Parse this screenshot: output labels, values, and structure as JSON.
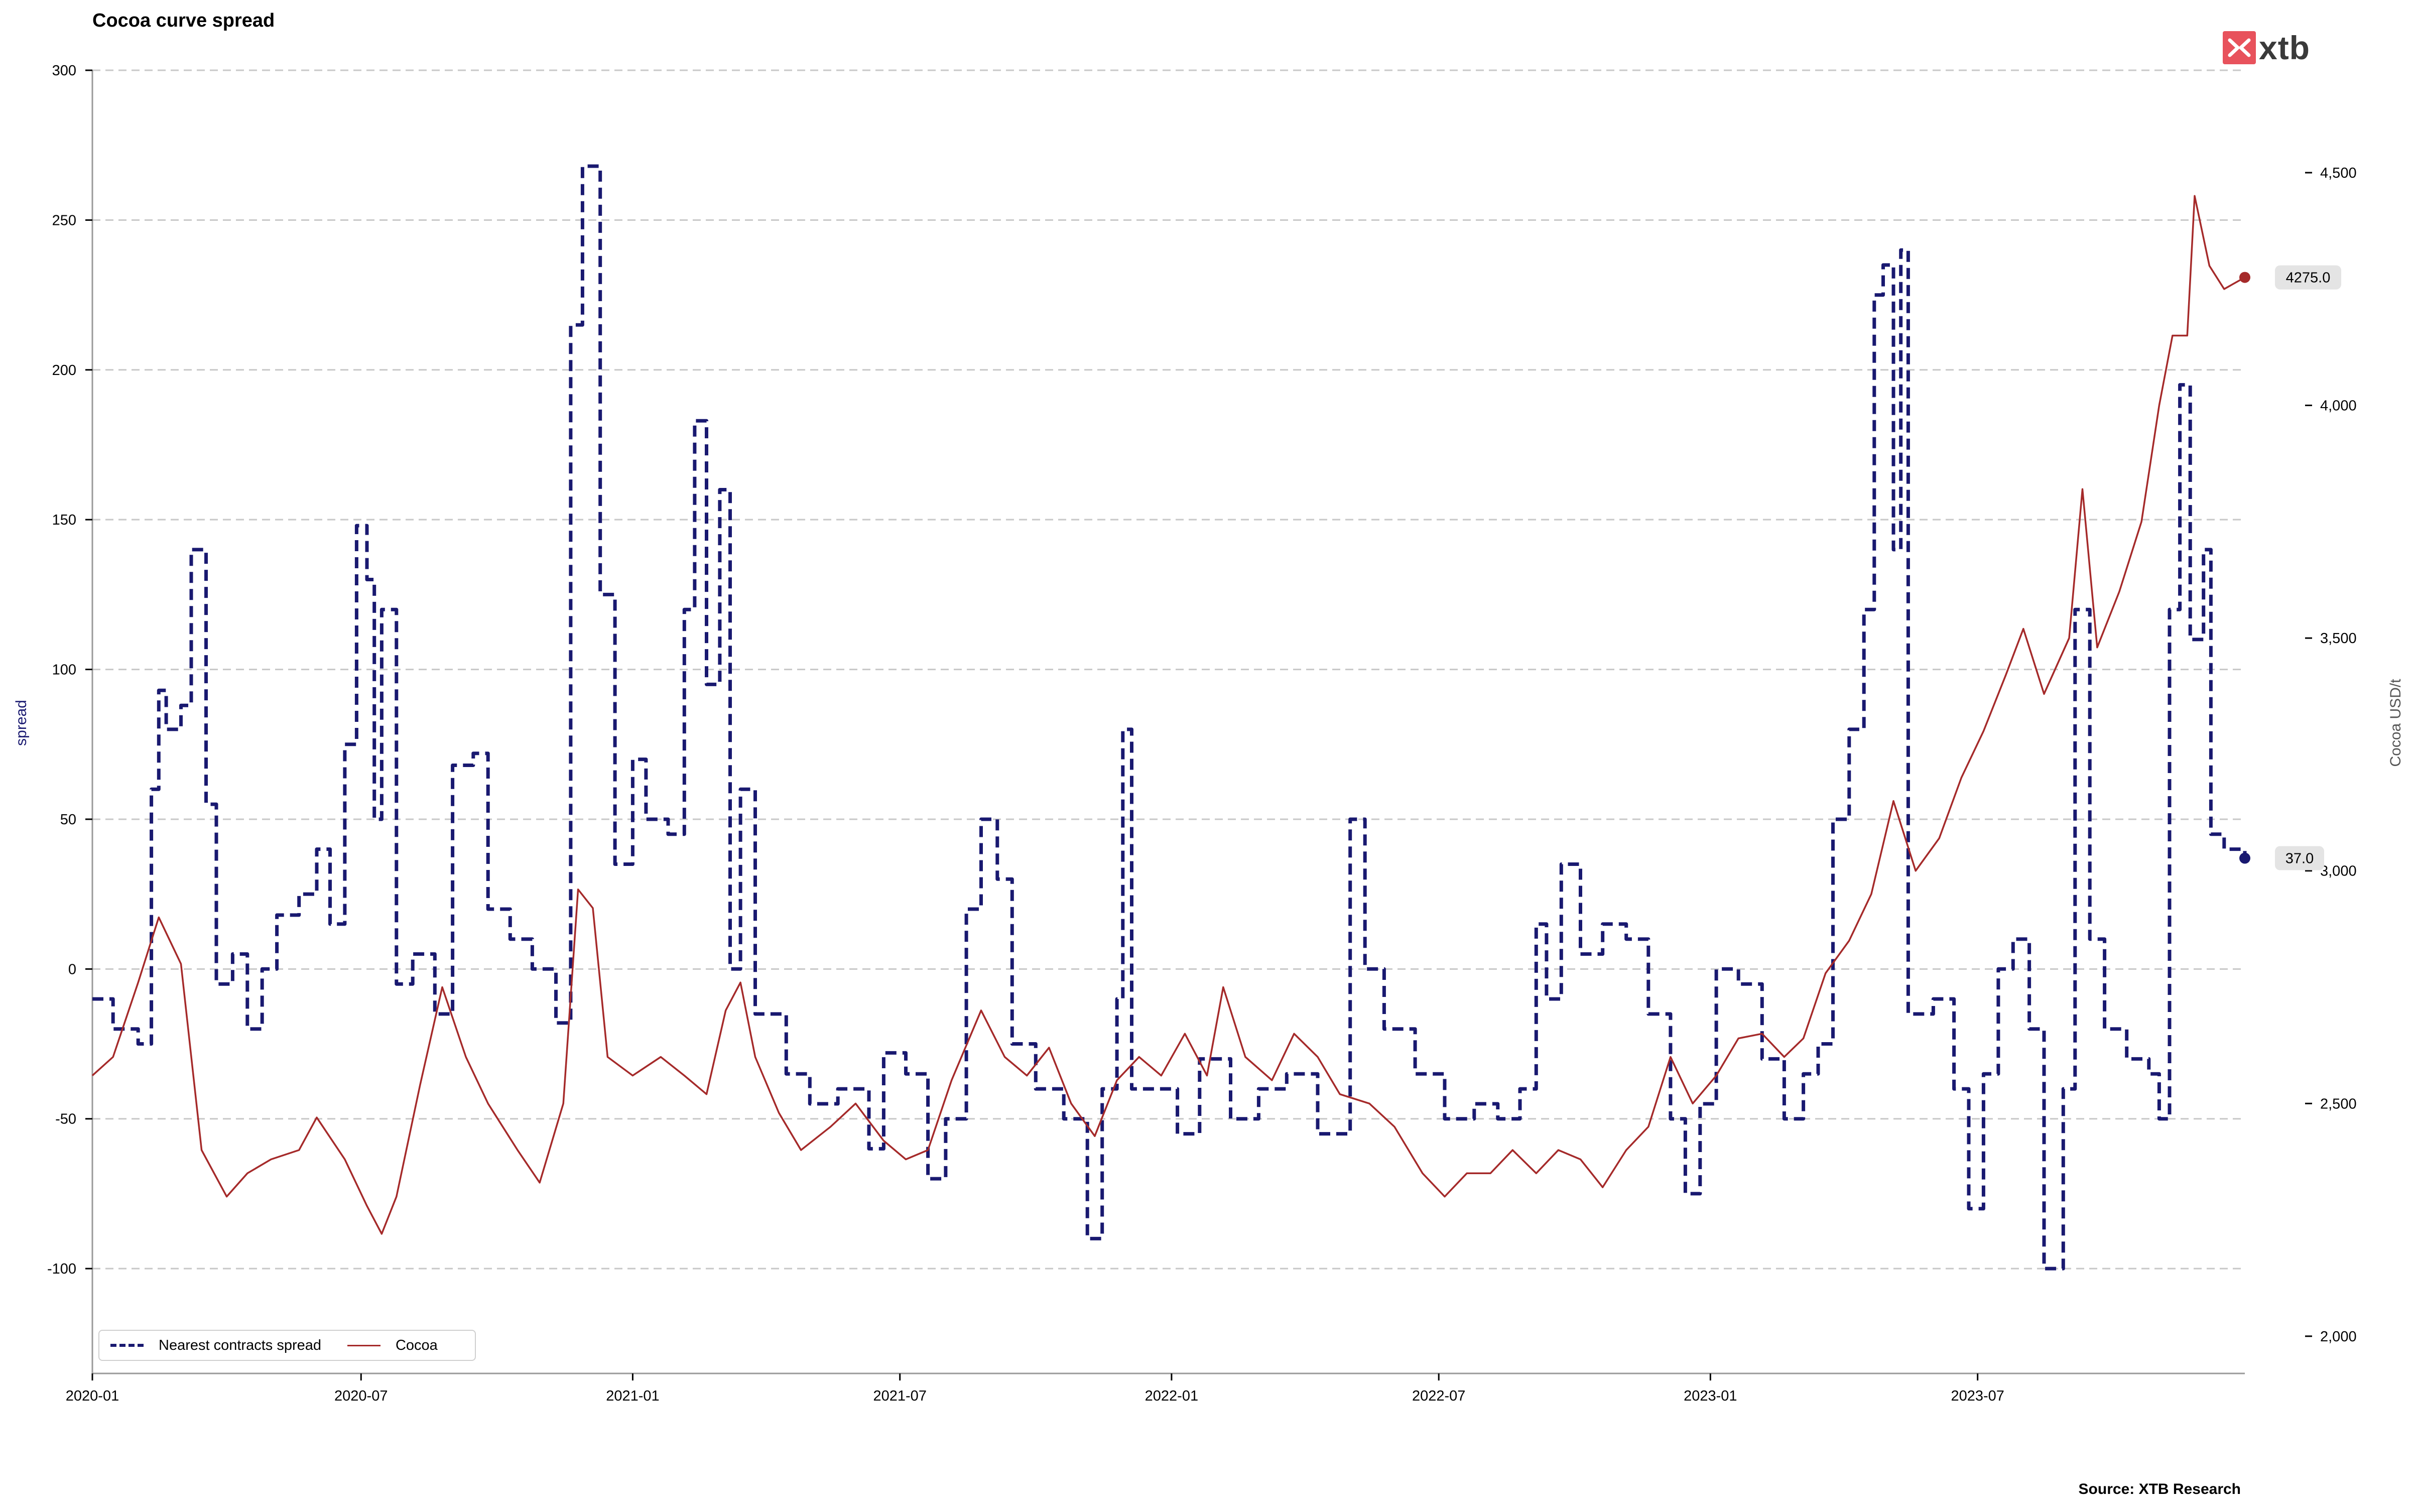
{
  "header": {
    "title": "Cocoa curve spread"
  },
  "footer": {
    "source": "Source: XTB Research"
  },
  "logo": {
    "text": "xtb",
    "color": "#e8525c"
  },
  "legend": {
    "spread_label": "Nearest contracts spread",
    "cocoa_label": "Cocoa"
  },
  "colors": {
    "spread": "#191970",
    "cocoa": "#a52a2a",
    "grid": "#c8c8c8"
  },
  "chart_data": {
    "type": "line",
    "x_start": "2020-01",
    "x_end": "2023-12",
    "xlim": [
      "2020-01-01",
      "2023-12-29"
    ],
    "x_ticks": [
      "2020-01",
      "2020-07",
      "2021-01",
      "2021-07",
      "2022-01",
      "2022-07",
      "2023-01",
      "2023-07"
    ],
    "ylabel_left": "spread",
    "ylabel_right": "Cocoa USD/t",
    "ylim_left": [
      -135,
      300
    ],
    "yticks_left": [
      "300",
      "250",
      "200",
      "150",
      "100",
      "50",
      "0",
      "-50",
      "-100"
    ],
    "ylim_right": [
      1920,
      4720
    ],
    "yticks_right": [
      "4,500",
      "4,000",
      "3,500",
      "3,000",
      "2,500",
      "2,000"
    ],
    "grid": "horizontal dashed",
    "legend_position": "lower-left",
    "series": [
      {
        "name": "Nearest contracts spread",
        "axis": "left",
        "style": "dashed",
        "end_label": "37.0",
        "points": [
          [
            "2020-01-01",
            -10
          ],
          [
            "2020-01-15",
            -20
          ],
          [
            "2020-02-01",
            -25
          ],
          [
            "2020-02-10",
            60
          ],
          [
            "2020-02-15",
            93
          ],
          [
            "2020-02-20",
            80
          ],
          [
            "2020-03-01",
            88
          ],
          [
            "2020-03-08",
            140
          ],
          [
            "2020-03-18",
            55
          ],
          [
            "2020-03-25",
            -5
          ],
          [
            "2020-04-05",
            5
          ],
          [
            "2020-04-15",
            -20
          ],
          [
            "2020-04-25",
            0
          ],
          [
            "2020-05-05",
            18
          ],
          [
            "2020-05-20",
            25
          ],
          [
            "2020-06-01",
            40
          ],
          [
            "2020-06-10",
            15
          ],
          [
            "2020-06-20",
            75
          ],
          [
            "2020-06-28",
            148
          ],
          [
            "2020-07-05",
            130
          ],
          [
            "2020-07-10",
            50
          ],
          [
            "2020-07-15",
            120
          ],
          [
            "2020-07-25",
            -5
          ],
          [
            "2020-08-05",
            5
          ],
          [
            "2020-08-20",
            -15
          ],
          [
            "2020-09-01",
            68
          ],
          [
            "2020-09-15",
            72
          ],
          [
            "2020-09-25",
            20
          ],
          [
            "2020-10-10",
            10
          ],
          [
            "2020-10-25",
            0
          ],
          [
            "2020-11-10",
            -18
          ],
          [
            "2020-11-20",
            215
          ],
          [
            "2020-11-28",
            268
          ],
          [
            "2020-12-10",
            125
          ],
          [
            "2020-12-20",
            35
          ],
          [
            "2021-01-01",
            70
          ],
          [
            "2021-01-10",
            50
          ],
          [
            "2021-01-25",
            45
          ],
          [
            "2021-02-05",
            120
          ],
          [
            "2021-02-12",
            183
          ],
          [
            "2021-02-20",
            95
          ],
          [
            "2021-03-01",
            160
          ],
          [
            "2021-03-08",
            0
          ],
          [
            "2021-03-15",
            60
          ],
          [
            "2021-03-25",
            -15
          ],
          [
            "2021-04-15",
            -35
          ],
          [
            "2021-05-01",
            -45
          ],
          [
            "2021-05-20",
            -40
          ],
          [
            "2021-06-10",
            -60
          ],
          [
            "2021-06-20",
            -28
          ],
          [
            "2021-07-05",
            -35
          ],
          [
            "2021-07-20",
            -70
          ],
          [
            "2021-08-01",
            -50
          ],
          [
            "2021-08-15",
            20
          ],
          [
            "2021-08-25",
            50
          ],
          [
            "2021-09-05",
            30
          ],
          [
            "2021-09-15",
            -25
          ],
          [
            "2021-10-01",
            -40
          ],
          [
            "2021-10-20",
            -50
          ],
          [
            "2021-11-05",
            -90
          ],
          [
            "2021-11-15",
            -40
          ],
          [
            "2021-11-25",
            -10
          ],
          [
            "2021-11-29",
            80
          ],
          [
            "2021-12-05",
            -40
          ],
          [
            "2022-01-05",
            -55
          ],
          [
            "2022-01-20",
            -30
          ],
          [
            "2022-02-10",
            -50
          ],
          [
            "2022-03-01",
            -40
          ],
          [
            "2022-03-20",
            -35
          ],
          [
            "2022-04-10",
            -55
          ],
          [
            "2022-04-25",
            -55
          ],
          [
            "2022-05-02",
            50
          ],
          [
            "2022-05-12",
            0
          ],
          [
            "2022-05-25",
            -20
          ],
          [
            "2022-06-15",
            -35
          ],
          [
            "2022-07-05",
            -50
          ],
          [
            "2022-07-25",
            -45
          ],
          [
            "2022-08-10",
            -50
          ],
          [
            "2022-08-25",
            -40
          ],
          [
            "2022-09-05",
            15
          ],
          [
            "2022-09-12",
            -10
          ],
          [
            "2022-09-22",
            35
          ],
          [
            "2022-10-05",
            5
          ],
          [
            "2022-10-20",
            15
          ],
          [
            "2022-11-05",
            10
          ],
          [
            "2022-11-20",
            -15
          ],
          [
            "2022-12-05",
            -50
          ],
          [
            "2022-12-15",
            -75
          ],
          [
            "2022-12-25",
            -45
          ],
          [
            "2023-01-05",
            0
          ],
          [
            "2023-01-20",
            -5
          ],
          [
            "2023-02-05",
            -30
          ],
          [
            "2023-02-20",
            -50
          ],
          [
            "2023-03-05",
            -35
          ],
          [
            "2023-03-15",
            -25
          ],
          [
            "2023-03-25",
            50
          ],
          [
            "2023-04-05",
            80
          ],
          [
            "2023-04-15",
            120
          ],
          [
            "2023-04-22",
            225
          ],
          [
            "2023-04-28",
            235
          ],
          [
            "2023-05-05",
            140
          ],
          [
            "2023-05-10",
            240
          ],
          [
            "2023-05-15",
            -15
          ],
          [
            "2023-06-01",
            -10
          ],
          [
            "2023-06-15",
            -40
          ],
          [
            "2023-06-25",
            -80
          ],
          [
            "2023-07-05",
            -35
          ],
          [
            "2023-07-15",
            0
          ],
          [
            "2023-07-25",
            10
          ],
          [
            "2023-08-05",
            -20
          ],
          [
            "2023-08-15",
            -100
          ],
          [
            "2023-08-28",
            -40
          ],
          [
            "2023-09-05",
            120
          ],
          [
            "2023-09-15",
            10
          ],
          [
            "2023-09-25",
            -20
          ],
          [
            "2023-10-10",
            -30
          ],
          [
            "2023-10-25",
            -35
          ],
          [
            "2023-11-01",
            -50
          ],
          [
            "2023-11-08",
            120
          ],
          [
            "2023-11-15",
            195
          ],
          [
            "2023-11-22",
            110
          ],
          [
            "2023-12-01",
            140
          ],
          [
            "2023-12-06",
            45
          ],
          [
            "2023-12-15",
            40
          ],
          [
            "2023-12-29",
            37
          ]
        ]
      },
      {
        "name": "Cocoa",
        "axis": "right",
        "style": "solid",
        "end_label": "4275.0",
        "points": [
          [
            "2020-01-01",
            2560
          ],
          [
            "2020-01-15",
            2600
          ],
          [
            "2020-02-01",
            2760
          ],
          [
            "2020-02-15",
            2900
          ],
          [
            "2020-03-01",
            2800
          ],
          [
            "2020-03-15",
            2400
          ],
          [
            "2020-04-01",
            2300
          ],
          [
            "2020-04-15",
            2350
          ],
          [
            "2020-05-01",
            2380
          ],
          [
            "2020-05-20",
            2400
          ],
          [
            "2020-06-01",
            2470
          ],
          [
            "2020-06-20",
            2380
          ],
          [
            "2020-07-05",
            2280
          ],
          [
            "2020-07-15",
            2220
          ],
          [
            "2020-07-25",
            2300
          ],
          [
            "2020-08-10",
            2540
          ],
          [
            "2020-08-25",
            2750
          ],
          [
            "2020-09-10",
            2600
          ],
          [
            "2020-09-25",
            2500
          ],
          [
            "2020-10-15",
            2400
          ],
          [
            "2020-10-30",
            2330
          ],
          [
            "2020-11-15",
            2500
          ],
          [
            "2020-11-25",
            2960
          ],
          [
            "2020-12-05",
            2920
          ],
          [
            "2020-12-15",
            2600
          ],
          [
            "2021-01-01",
            2560
          ],
          [
            "2021-01-20",
            2600
          ],
          [
            "2021-02-05",
            2560
          ],
          [
            "2021-02-20",
            2520
          ],
          [
            "2021-03-05",
            2700
          ],
          [
            "2021-03-15",
            2760
          ],
          [
            "2021-03-25",
            2600
          ],
          [
            "2021-04-10",
            2480
          ],
          [
            "2021-04-25",
            2400
          ],
          [
            "2021-05-15",
            2450
          ],
          [
            "2021-06-01",
            2500
          ],
          [
            "2021-06-20",
            2420
          ],
          [
            "2021-07-05",
            2380
          ],
          [
            "2021-07-20",
            2400
          ],
          [
            "2021-08-05",
            2550
          ],
          [
            "2021-08-25",
            2700
          ],
          [
            "2021-09-10",
            2600
          ],
          [
            "2021-09-25",
            2560
          ],
          [
            "2021-10-10",
            2620
          ],
          [
            "2021-10-25",
            2500
          ],
          [
            "2021-11-10",
            2430
          ],
          [
            "2021-11-25",
            2550
          ],
          [
            "2021-12-10",
            2600
          ],
          [
            "2021-12-25",
            2560
          ],
          [
            "2022-01-10",
            2650
          ],
          [
            "2022-01-25",
            2560
          ],
          [
            "2022-02-05",
            2750
          ],
          [
            "2022-02-20",
            2600
          ],
          [
            "2022-03-10",
            2550
          ],
          [
            "2022-03-25",
            2650
          ],
          [
            "2022-04-10",
            2600
          ],
          [
            "2022-04-25",
            2520
          ],
          [
            "2022-05-15",
            2500
          ],
          [
            "2022-06-01",
            2450
          ],
          [
            "2022-06-20",
            2350
          ],
          [
            "2022-07-05",
            2300
          ],
          [
            "2022-07-20",
            2350
          ],
          [
            "2022-08-05",
            2350
          ],
          [
            "2022-08-20",
            2400
          ],
          [
            "2022-09-05",
            2350
          ],
          [
            "2022-09-20",
            2400
          ],
          [
            "2022-10-05",
            2380
          ],
          [
            "2022-10-20",
            2320
          ],
          [
            "2022-11-05",
            2400
          ],
          [
            "2022-11-20",
            2450
          ],
          [
            "2022-12-05",
            2600
          ],
          [
            "2022-12-20",
            2500
          ],
          [
            "2023-01-05",
            2560
          ],
          [
            "2023-01-20",
            2640
          ],
          [
            "2023-02-05",
            2650
          ],
          [
            "2023-02-20",
            2600
          ],
          [
            "2023-03-05",
            2640
          ],
          [
            "2023-03-20",
            2780
          ],
          [
            "2023-04-05",
            2850
          ],
          [
            "2023-04-20",
            2950
          ],
          [
            "2023-05-05",
            3150
          ],
          [
            "2023-05-20",
            3000
          ],
          [
            "2023-06-05",
            3070
          ],
          [
            "2023-06-20",
            3200
          ],
          [
            "2023-07-05",
            3300
          ],
          [
            "2023-07-20",
            3420
          ],
          [
            "2023-08-01",
            3520
          ],
          [
            "2023-08-15",
            3380
          ],
          [
            "2023-09-01",
            3500
          ],
          [
            "2023-09-10",
            3820
          ],
          [
            "2023-09-20",
            3480
          ],
          [
            "2023-10-05",
            3600
          ],
          [
            "2023-10-20",
            3750
          ],
          [
            "2023-11-01",
            4000
          ],
          [
            "2023-11-10",
            4150
          ],
          [
            "2023-11-20",
            4150
          ],
          [
            "2023-11-25",
            4450
          ],
          [
            "2023-12-05",
            4300
          ],
          [
            "2023-12-15",
            4250
          ],
          [
            "2023-12-29",
            4275
          ]
        ]
      }
    ]
  }
}
